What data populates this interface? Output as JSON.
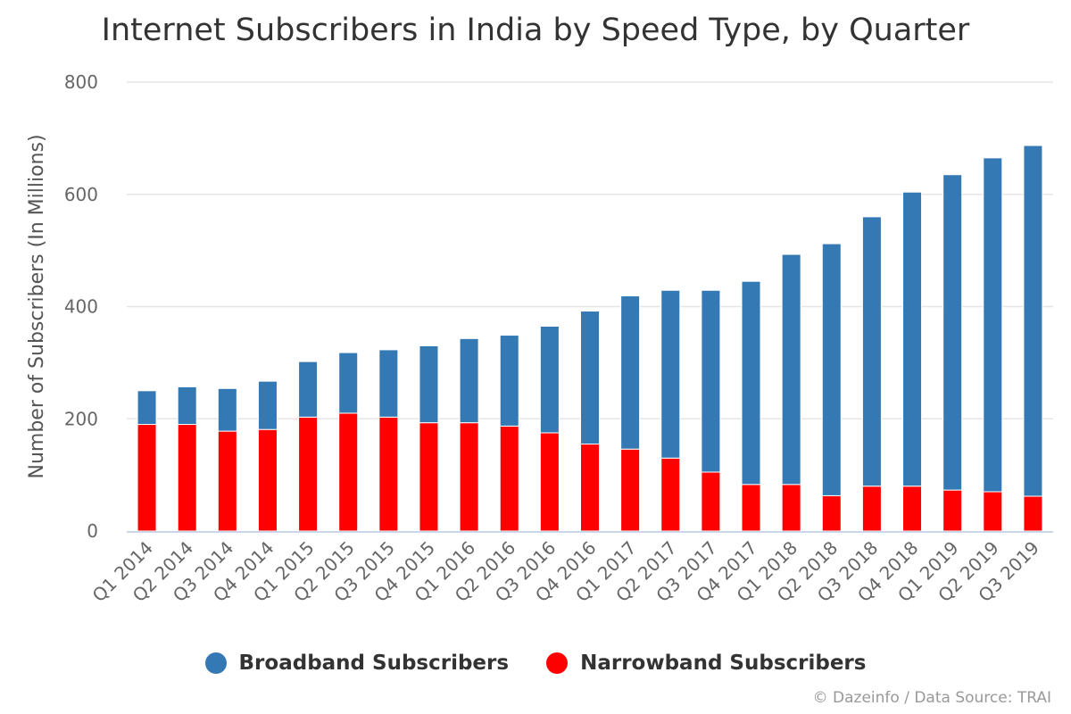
{
  "chart_data": {
    "type": "bar",
    "stacked": true,
    "title": "Internet Subscribers in India by Speed Type, by Quarter",
    "xlabel": "",
    "ylabel": "Number of Subscribers (In Millions)",
    "ylim": [
      0,
      800
    ],
    "yticks": [
      0,
      200,
      400,
      600,
      800
    ],
    "grid": true,
    "legend_position": "bottom-center",
    "categories": [
      "Q1 2014",
      "Q2 2014",
      "Q3 2014",
      "Q4 2014",
      "Q1 2015",
      "Q2 2015",
      "Q3 2015",
      "Q4 2015",
      "Q1 2016",
      "Q2 2016",
      "Q3 2016",
      "Q4 2016",
      "Q1 2017",
      "Q2 2017",
      "Q3 2017",
      "Q4 2017",
      "Q1 2018",
      "Q2 2018",
      "Q3 2018",
      "Q4 2018",
      "Q1 2019",
      "Q2 2019",
      "Q3 2019"
    ],
    "series": [
      {
        "name": "Narrowband Subscribers",
        "color": "#ff0000",
        "values": [
          190,
          190,
          178,
          181,
          203,
          210,
          203,
          193,
          193,
          187,
          175,
          155,
          146,
          130,
          105,
          83,
          83,
          63,
          80,
          80,
          73,
          70,
          62
        ]
      },
      {
        "name": "Broadband Subscribers",
        "color": "#3478b4",
        "values": [
          60,
          67,
          76,
          86,
          99,
          108,
          120,
          137,
          150,
          162,
          190,
          237,
          273,
          299,
          324,
          362,
          410,
          449,
          480,
          524,
          562,
          595,
          625
        ]
      }
    ],
    "totals": [
      250,
      257,
      254,
      267,
      302,
      318,
      323,
      330,
      343,
      349,
      365,
      392,
      419,
      429,
      429,
      445,
      493,
      512,
      560,
      604,
      635,
      665,
      687
    ],
    "legend_order": [
      "Broadband Subscribers",
      "Narrowband Subscribers"
    ]
  },
  "credit": "© Dazeinfo / Data Source: TRAI"
}
